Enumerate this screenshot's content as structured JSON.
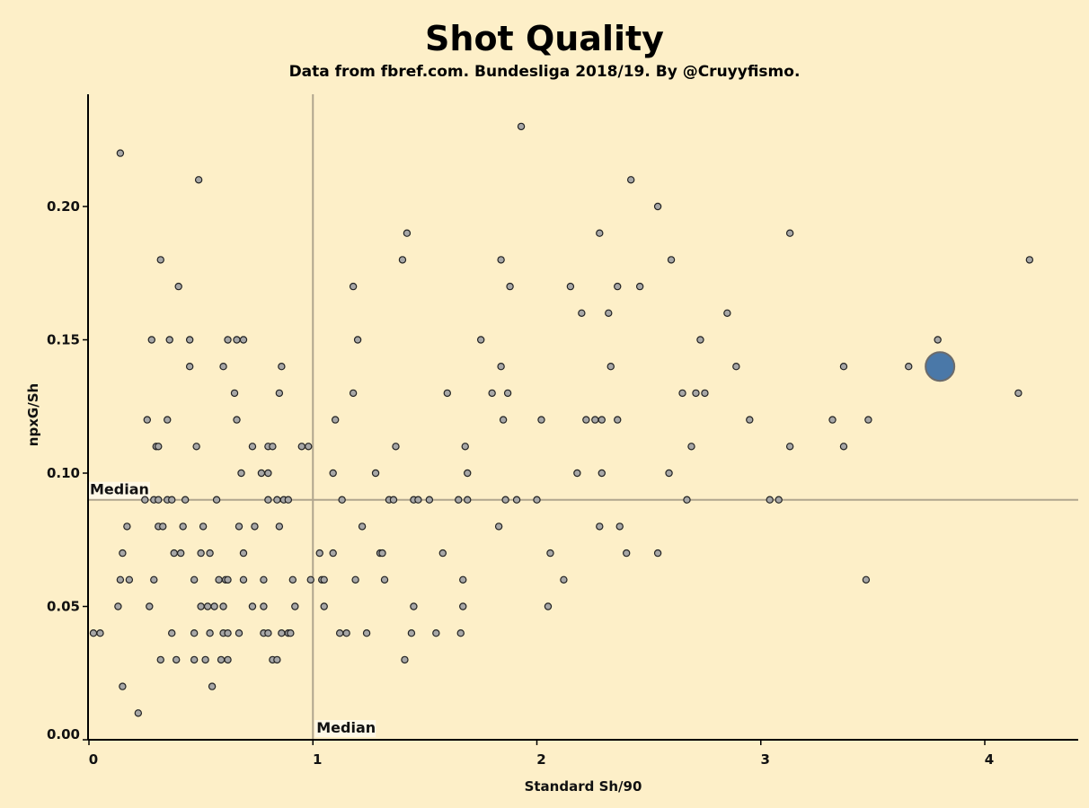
{
  "chart_data": {
    "type": "scatter",
    "title": "Shot Quality",
    "subtitle": "Data from fbref.com. Bundesliga 2018/19. By @Cruyyfismo.",
    "xlabel": "Standard Sh/90",
    "ylabel": "npxG/Sh",
    "xlim": [
      0,
      4.4
    ],
    "ylim": [
      0,
      0.24
    ],
    "xticks": [
      "0",
      "1",
      "2",
      "3",
      "4"
    ],
    "yticks": [
      "0.00",
      "0.05",
      "0.10",
      "0.15",
      "0.20"
    ],
    "grid": false,
    "median_x": 1.0,
    "median_y": 0.09,
    "median_label": "Median",
    "colors": {
      "background": "#fdefc8",
      "point_fill": "#a7a7a7",
      "point_stroke": "#222222",
      "highlight_fill": "#4a78a8",
      "highlight_stroke": "#6b6b6b",
      "median_line": "#b0a58e"
    },
    "highlight": {
      "x": 3.8,
      "y": 0.14
    },
    "points": [
      [
        0.02,
        0.04
      ],
      [
        0.05,
        0.04
      ],
      [
        0.14,
        0.22
      ],
      [
        0.49,
        0.21
      ],
      [
        1.93,
        0.23
      ],
      [
        2.42,
        0.21
      ],
      [
        2.54,
        0.2
      ],
      [
        2.28,
        0.19
      ],
      [
        1.42,
        0.19
      ],
      [
        3.13,
        0.19
      ],
      [
        0.32,
        0.18
      ],
      [
        1.4,
        0.18
      ],
      [
        1.84,
        0.18
      ],
      [
        2.6,
        0.18
      ],
      [
        4.2,
        0.18
      ],
      [
        0.4,
        0.17
      ],
      [
        1.18,
        0.17
      ],
      [
        1.88,
        0.17
      ],
      [
        2.15,
        0.17
      ],
      [
        2.36,
        0.17
      ],
      [
        2.46,
        0.17
      ],
      [
        2.2,
        0.16
      ],
      [
        2.32,
        0.16
      ],
      [
        2.85,
        0.16
      ],
      [
        0.28,
        0.15
      ],
      [
        0.36,
        0.15
      ],
      [
        0.45,
        0.15
      ],
      [
        0.62,
        0.15
      ],
      [
        0.66,
        0.15
      ],
      [
        0.69,
        0.15
      ],
      [
        1.2,
        0.15
      ],
      [
        1.75,
        0.15
      ],
      [
        2.73,
        0.15
      ],
      [
        3.79,
        0.15
      ],
      [
        0.45,
        0.14
      ],
      [
        0.6,
        0.14
      ],
      [
        0.86,
        0.14
      ],
      [
        1.84,
        0.14
      ],
      [
        2.33,
        0.14
      ],
      [
        2.89,
        0.14
      ],
      [
        3.37,
        0.14
      ],
      [
        3.66,
        0.14
      ],
      [
        0.65,
        0.13
      ],
      [
        0.85,
        0.13
      ],
      [
        1.18,
        0.13
      ],
      [
        1.6,
        0.13
      ],
      [
        1.8,
        0.13
      ],
      [
        1.87,
        0.13
      ],
      [
        2.65,
        0.13
      ],
      [
        2.71,
        0.13
      ],
      [
        2.75,
        0.13
      ],
      [
        4.15,
        0.13
      ],
      [
        0.26,
        0.12
      ],
      [
        0.35,
        0.12
      ],
      [
        0.66,
        0.12
      ],
      [
        1.1,
        0.12
      ],
      [
        1.85,
        0.12
      ],
      [
        2.02,
        0.12
      ],
      [
        2.22,
        0.12
      ],
      [
        2.26,
        0.12
      ],
      [
        2.29,
        0.12
      ],
      [
        2.36,
        0.12
      ],
      [
        2.95,
        0.12
      ],
      [
        3.32,
        0.12
      ],
      [
        3.48,
        0.12
      ],
      [
        0.3,
        0.11
      ],
      [
        0.31,
        0.11
      ],
      [
        0.48,
        0.11
      ],
      [
        0.73,
        0.11
      ],
      [
        0.8,
        0.11
      ],
      [
        0.82,
        0.11
      ],
      [
        0.95,
        0.11
      ],
      [
        0.98,
        0.11
      ],
      [
        1.37,
        0.11
      ],
      [
        1.68,
        0.11
      ],
      [
        2.69,
        0.11
      ],
      [
        3.13,
        0.11
      ],
      [
        3.37,
        0.11
      ],
      [
        0.68,
        0.1
      ],
      [
        0.77,
        0.1
      ],
      [
        0.8,
        0.1
      ],
      [
        1.09,
        0.1
      ],
      [
        1.28,
        0.1
      ],
      [
        1.69,
        0.1
      ],
      [
        2.18,
        0.1
      ],
      [
        2.29,
        0.1
      ],
      [
        2.59,
        0.1
      ],
      [
        0.25,
        0.09
      ],
      [
        0.29,
        0.09
      ],
      [
        0.31,
        0.09
      ],
      [
        0.35,
        0.09
      ],
      [
        0.37,
        0.09
      ],
      [
        0.43,
        0.09
      ],
      [
        0.57,
        0.09
      ],
      [
        0.8,
        0.09
      ],
      [
        0.84,
        0.09
      ],
      [
        0.87,
        0.09
      ],
      [
        0.89,
        0.09
      ],
      [
        1.13,
        0.09
      ],
      [
        1.34,
        0.09
      ],
      [
        1.36,
        0.09
      ],
      [
        1.45,
        0.09
      ],
      [
        1.47,
        0.09
      ],
      [
        1.52,
        0.09
      ],
      [
        1.65,
        0.09
      ],
      [
        1.69,
        0.09
      ],
      [
        1.86,
        0.09
      ],
      [
        1.91,
        0.09
      ],
      [
        2.0,
        0.09
      ],
      [
        2.67,
        0.09
      ],
      [
        3.04,
        0.09
      ],
      [
        3.08,
        0.09
      ],
      [
        0.17,
        0.08
      ],
      [
        0.31,
        0.08
      ],
      [
        0.33,
        0.08
      ],
      [
        0.42,
        0.08
      ],
      [
        0.51,
        0.08
      ],
      [
        0.67,
        0.08
      ],
      [
        0.74,
        0.08
      ],
      [
        0.85,
        0.08
      ],
      [
        1.22,
        0.08
      ],
      [
        1.83,
        0.08
      ],
      [
        2.28,
        0.08
      ],
      [
        2.37,
        0.08
      ],
      [
        0.15,
        0.07
      ],
      [
        0.38,
        0.07
      ],
      [
        0.41,
        0.07
      ],
      [
        0.5,
        0.07
      ],
      [
        0.54,
        0.07
      ],
      [
        0.69,
        0.07
      ],
      [
        1.03,
        0.07
      ],
      [
        1.09,
        0.07
      ],
      [
        1.3,
        0.07
      ],
      [
        1.31,
        0.07
      ],
      [
        1.58,
        0.07
      ],
      [
        2.06,
        0.07
      ],
      [
        2.4,
        0.07
      ],
      [
        2.54,
        0.07
      ],
      [
        0.14,
        0.06
      ],
      [
        0.18,
        0.06
      ],
      [
        0.29,
        0.06
      ],
      [
        0.47,
        0.06
      ],
      [
        0.58,
        0.06
      ],
      [
        0.61,
        0.06
      ],
      [
        0.62,
        0.06
      ],
      [
        0.69,
        0.06
      ],
      [
        0.78,
        0.06
      ],
      [
        0.91,
        0.06
      ],
      [
        0.99,
        0.06
      ],
      [
        1.04,
        0.06
      ],
      [
        1.05,
        0.06
      ],
      [
        1.19,
        0.06
      ],
      [
        1.32,
        0.06
      ],
      [
        1.67,
        0.06
      ],
      [
        2.12,
        0.06
      ],
      [
        3.47,
        0.06
      ],
      [
        0.13,
        0.05
      ],
      [
        0.27,
        0.05
      ],
      [
        0.5,
        0.05
      ],
      [
        0.53,
        0.05
      ],
      [
        0.56,
        0.05
      ],
      [
        0.6,
        0.05
      ],
      [
        0.73,
        0.05
      ],
      [
        0.78,
        0.05
      ],
      [
        0.92,
        0.05
      ],
      [
        1.05,
        0.05
      ],
      [
        1.45,
        0.05
      ],
      [
        1.67,
        0.05
      ],
      [
        2.05,
        0.05
      ],
      [
        0.37,
        0.04
      ],
      [
        0.47,
        0.04
      ],
      [
        0.54,
        0.04
      ],
      [
        0.6,
        0.04
      ],
      [
        0.62,
        0.04
      ],
      [
        0.67,
        0.04
      ],
      [
        0.78,
        0.04
      ],
      [
        0.8,
        0.04
      ],
      [
        0.86,
        0.04
      ],
      [
        0.89,
        0.04
      ],
      [
        0.9,
        0.04
      ],
      [
        1.12,
        0.04
      ],
      [
        1.15,
        0.04
      ],
      [
        1.24,
        0.04
      ],
      [
        1.44,
        0.04
      ],
      [
        1.55,
        0.04
      ],
      [
        1.66,
        0.04
      ],
      [
        0.32,
        0.03
      ],
      [
        0.39,
        0.03
      ],
      [
        0.47,
        0.03
      ],
      [
        0.52,
        0.03
      ],
      [
        0.59,
        0.03
      ],
      [
        0.62,
        0.03
      ],
      [
        0.82,
        0.03
      ],
      [
        0.84,
        0.03
      ],
      [
        1.41,
        0.03
      ],
      [
        0.15,
        0.02
      ],
      [
        0.55,
        0.02
      ],
      [
        0.22,
        0.01
      ]
    ]
  }
}
